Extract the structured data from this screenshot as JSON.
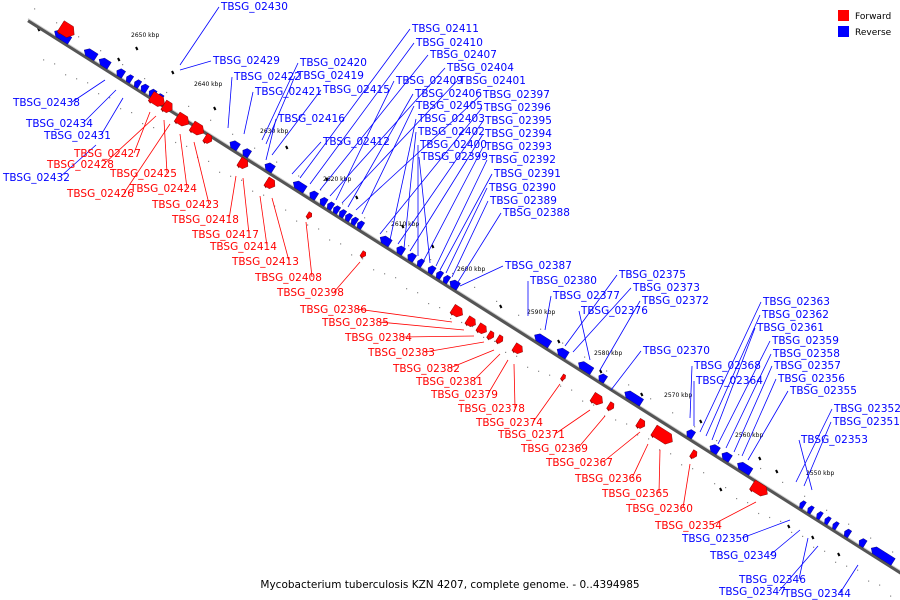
{
  "colors": {
    "forward": "#ff0000",
    "reverse": "#0000ff",
    "backbone": "#555555",
    "marker": "#000000"
  },
  "legend": [
    {
      "label": "Forward",
      "color": "#ff0000"
    },
    {
      "label": "Reverse",
      "color": "#0000ff"
    }
  ],
  "caption": "Mycobacterium tuberculosis KZN 4207, complete genome. - 0..4394985",
  "kbp_ticks": [
    "2650 kbp",
    "2640 kbp",
    "2630 kbp",
    "2620 kbp",
    "2610 kbp",
    "2600 kbp",
    "2590 kbp",
    "2580 kbp",
    "2570 kbp",
    "2560 kbp",
    "2550 kbp"
  ],
  "reverse_labels": [
    "TBSG_02430",
    "TBSG_02429",
    "TBSG_02422",
    "TBSG_02421",
    "TBSG_02420",
    "TBSG_02419",
    "TBSG_02415",
    "TBSG_02416",
    "TBSG_02412",
    "TBSG_02438",
    "TBSG_02434",
    "TBSG_02431",
    "TBSG_02432",
    "TBSG_02411",
    "TBSG_02410",
    "TBSG_02407",
    "TBSG_02404",
    "TBSG_02409",
    "TBSG_02401",
    "TBSG_02406",
    "TBSG_02397",
    "TBSG_02405",
    "TBSG_02396",
    "TBSG_02403",
    "TBSG_02395",
    "TBSG_02402",
    "TBSG_02394",
    "TBSG_02400",
    "TBSG_02393",
    "TBSG_02399",
    "TBSG_02392",
    "TBSG_02391",
    "TBSG_02390",
    "TBSG_02389",
    "TBSG_02388",
    "TBSG_02387",
    "TBSG_02380",
    "TBSG_02377",
    "TBSG_02375",
    "TBSG_02373",
    "TBSG_02376",
    "TBSG_02372",
    "TBSG_02370",
    "TBSG_02368",
    "TBSG_02364",
    "TBSG_02363",
    "TBSG_02362",
    "TBSG_02361",
    "TBSG_02359",
    "TBSG_02358",
    "TBSG_02357",
    "TBSG_02356",
    "TBSG_02355",
    "TBSG_02352",
    "TBSG_02351",
    "TBSG_02353",
    "TBSG_02350",
    "TBSG_02349",
    "TBSG_02346",
    "TBSG_02347",
    "TBSG_02344"
  ],
  "forward_labels": [
    "TBSG_02427",
    "TBSG_02428",
    "TBSG_02425",
    "TBSG_02426",
    "TBSG_02424",
    "TBSG_02423",
    "TBSG_02418",
    "TBSG_02417",
    "TBSG_02414",
    "TBSG_02413",
    "TBSG_02408",
    "TBSG_02398",
    "TBSG_02386",
    "TBSG_02385",
    "TBSG_02384",
    "TBSG_02383",
    "TBSG_02382",
    "TBSG_02381",
    "TBSG_02379",
    "TBSG_02378",
    "TBSG_02374",
    "TBSG_02371",
    "TBSG_02369",
    "TBSG_02367",
    "TBSG_02366",
    "TBSG_02365",
    "TBSG_02360",
    "TBSG_02354"
  ]
}
